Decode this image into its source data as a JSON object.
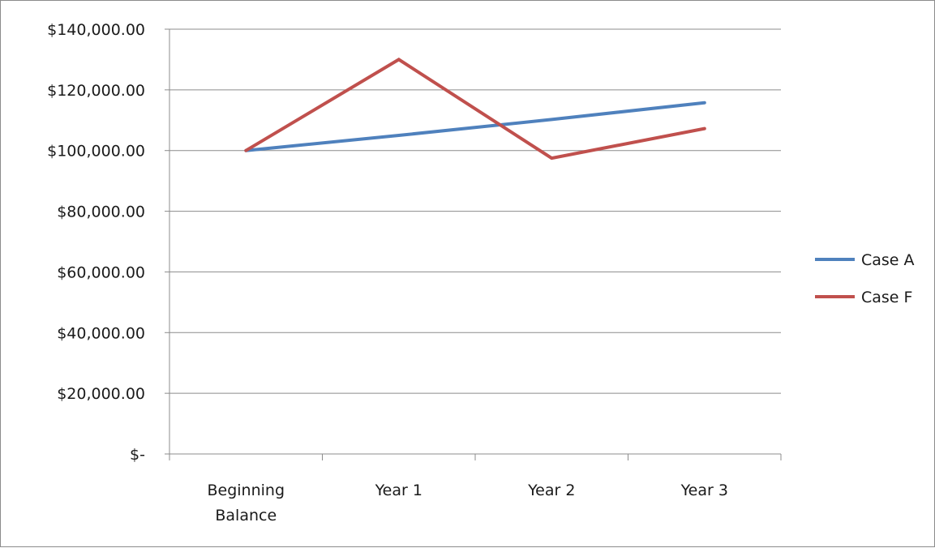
{
  "chart_data": {
    "type": "line",
    "categories": [
      "Beginning Balance",
      "Year 1",
      "Year 2",
      "Year 3"
    ],
    "category_lines": [
      [
        "Beginning",
        "Balance"
      ],
      [
        "Year 1"
      ],
      [
        "Year 2"
      ],
      [
        "Year 3"
      ]
    ],
    "series": [
      {
        "name": "Case A",
        "color": "#4f81bd",
        "values": [
          100000,
          105000,
          110250,
          115763
        ]
      },
      {
        "name": "Case F",
        "color": "#c0504d",
        "values": [
          100000,
          130000,
          97500,
          107250
        ]
      }
    ],
    "ylim": [
      0,
      140000
    ],
    "yticks": [
      0,
      20000,
      40000,
      60000,
      80000,
      100000,
      120000,
      140000
    ],
    "ytick_labels": [
      "$-",
      "$20,000.00",
      "$40,000.00",
      "$60,000.00",
      "$80,000.00",
      "$100,000.00",
      "$120,000.00",
      "$140,000.00"
    ],
    "grid": true,
    "legend": "right",
    "title": "",
    "xlabel": "",
    "ylabel": ""
  },
  "colors": {
    "gridline": "#8c8c8c",
    "axis": "#8c8c8c"
  }
}
